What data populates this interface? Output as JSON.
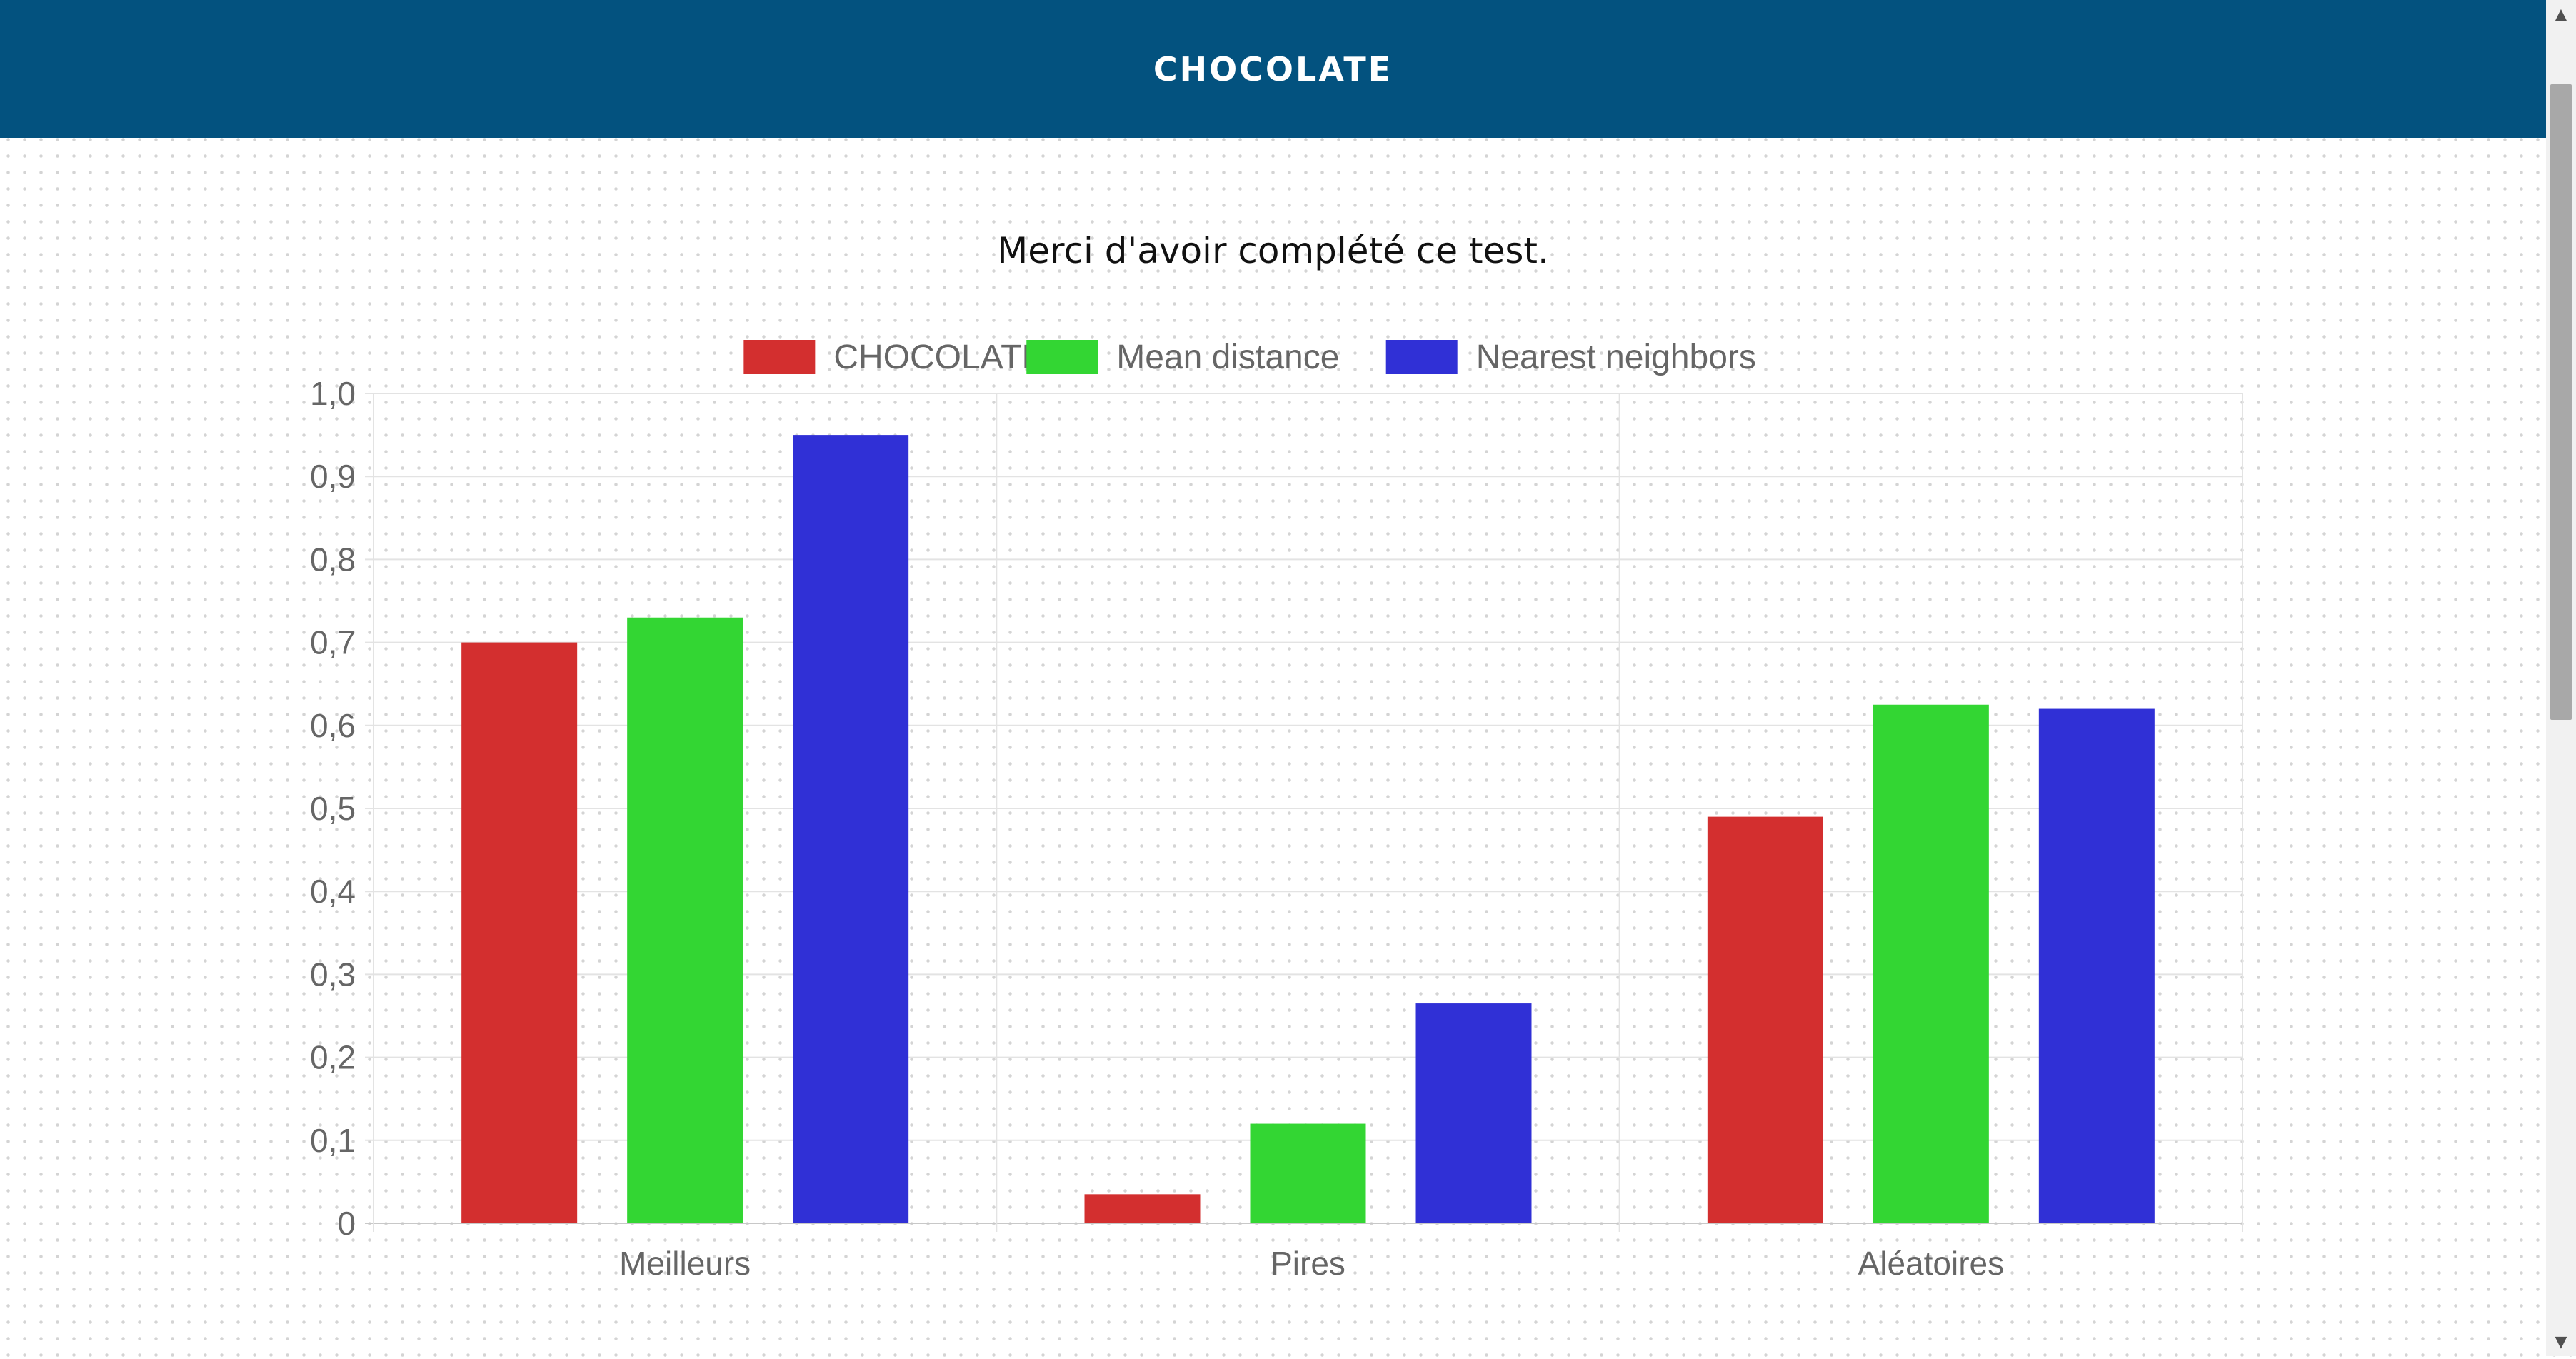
{
  "header": {
    "title": "CHOCOLATE"
  },
  "page": {
    "message": "Merci d'avoir complété ce test."
  },
  "colors": {
    "header_bg": "#03527f",
    "series": [
      "#d32f2f",
      "#33d633",
      "#3030d6"
    ]
  },
  "scrollbar": {
    "up_icon": "triangle-up",
    "down_icon": "triangle-down"
  },
  "chart_data": {
    "type": "bar",
    "title": "",
    "xlabel": "",
    "ylabel": "",
    "categories": [
      "Meilleurs",
      "Pires",
      "Aléatoires"
    ],
    "series": [
      {
        "name": "CHOCOLATE",
        "values": [
          0.7,
          0.035,
          0.49
        ]
      },
      {
        "name": "Mean distance",
        "values": [
          0.73,
          0.12,
          0.625
        ]
      },
      {
        "name": "Nearest neighbors",
        "values": [
          0.95,
          0.265,
          0.62
        ]
      }
    ],
    "ylim": [
      0,
      1
    ],
    "yticks": [
      "0",
      "0,1",
      "0,2",
      "0,3",
      "0,4",
      "0,5",
      "0,6",
      "0,7",
      "0,8",
      "0,9",
      "1,0"
    ],
    "grid": true,
    "legend_position": "top"
  }
}
